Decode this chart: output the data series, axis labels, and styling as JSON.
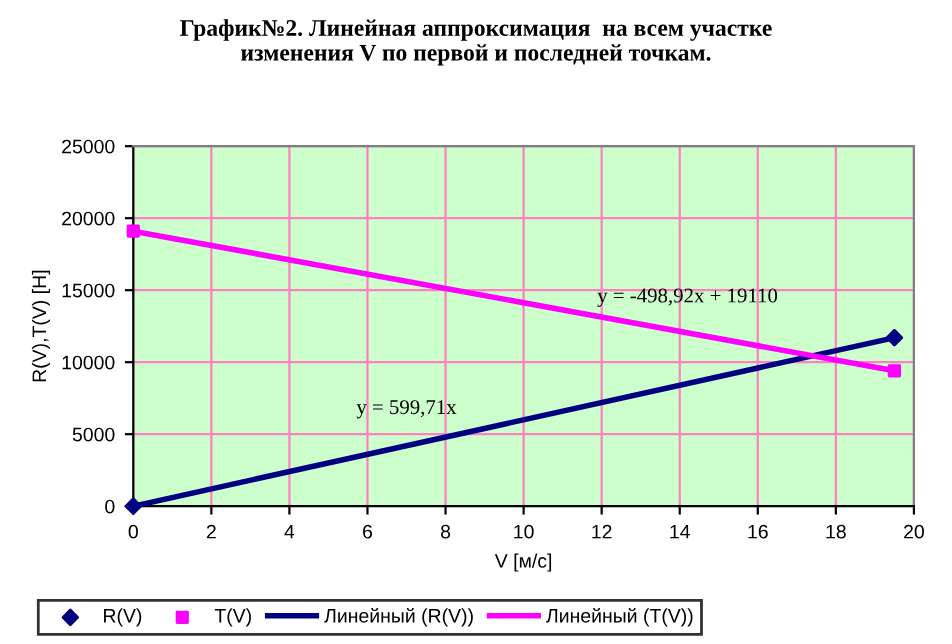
{
  "chart_data": {
    "type": "scatter",
    "title": "График№2. Линейная аппроксимация  на всем участке\nизменения V по первой и последней точкам.",
    "xlabel": "V [м/с]",
    "ylabel": "R(V),T(V) [H]",
    "series": [
      {
        "name": "R(V)",
        "marker": "diamond",
        "color": "#000080",
        "values": [
          0,
          11700
        ]
      },
      {
        "name": "T(V)",
        "marker": "square",
        "color": "#ff00ff",
        "values": [
          19100,
          9400
        ]
      },
      {
        "name": "Линейный (R(V))",
        "type": "line",
        "marker": "none",
        "color": "#000080",
        "values": [
          0,
          11700
        ]
      },
      {
        "name": "Линейный (T(V))",
        "type": "line",
        "marker": "none",
        "color": "#ff00ff",
        "values": [
          19100,
          9400
        ]
      }
    ],
    "x": [
      0,
      19.5
    ],
    "annotations": [
      "y = 599,71x",
      "y = -498,92x + 19110"
    ],
    "xlim": [
      0,
      20
    ],
    "xticks": [
      0,
      2,
      4,
      6,
      8,
      10,
      12,
      14,
      16,
      18,
      20
    ],
    "ylim": [
      0,
      25000
    ],
    "yticks": [
      0,
      5000,
      10000,
      15000,
      20000,
      25000
    ],
    "grid": true,
    "legend": "bottom"
  }
}
